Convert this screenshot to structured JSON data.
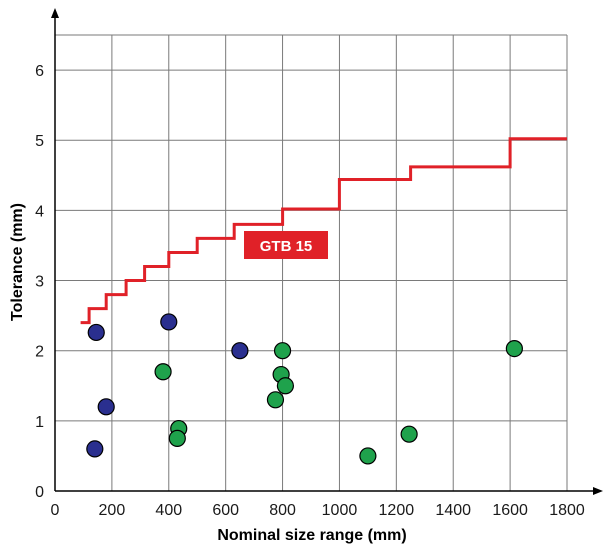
{
  "chart_data": {
    "type": "scatter",
    "xlabel": "Nominal size range (mm)",
    "ylabel": "Tolerance (mm)",
    "xlim": [
      0,
      1800
    ],
    "ylim": [
      0,
      6.5
    ],
    "x_ticks": [
      0,
      200,
      400,
      600,
      800,
      1000,
      1200,
      1400,
      1600,
      1800
    ],
    "y_ticks": [
      0,
      1,
      2,
      3,
      4,
      5,
      6
    ],
    "grid": true,
    "colors": {
      "line": "#e02128",
      "blue": "#2a2f8f",
      "green": "#1fa24c",
      "annotation_bg": "#e02128"
    },
    "step_line": {
      "label": "GTB 15",
      "points": [
        [
          90,
          2.4
        ],
        [
          120,
          2.4
        ],
        [
          120,
          2.6
        ],
        [
          180,
          2.6
        ],
        [
          180,
          2.8
        ],
        [
          250,
          2.8
        ],
        [
          250,
          3.0
        ],
        [
          315,
          3.0
        ],
        [
          315,
          3.2
        ],
        [
          400,
          3.2
        ],
        [
          400,
          3.4
        ],
        [
          500,
          3.4
        ],
        [
          500,
          3.6
        ],
        [
          630,
          3.6
        ],
        [
          630,
          3.8
        ],
        [
          800,
          3.8
        ],
        [
          800,
          4.02
        ],
        [
          1000,
          4.02
        ],
        [
          1000,
          4.44
        ],
        [
          1250,
          4.44
        ],
        [
          1250,
          4.62
        ],
        [
          1600,
          4.62
        ],
        [
          1600,
          5.02
        ],
        [
          1800,
          5.02
        ]
      ]
    },
    "series": [
      {
        "color": "blue",
        "points": [
          [
            145,
            2.26
          ],
          [
            400,
            2.41
          ],
          [
            650,
            2.0
          ],
          [
            180,
            1.2
          ],
          [
            140,
            0.6
          ]
        ]
      },
      {
        "color": "green",
        "points": [
          [
            800,
            2.0
          ],
          [
            380,
            1.7
          ],
          [
            795,
            1.66
          ],
          [
            810,
            1.5
          ],
          [
            775,
            1.3
          ],
          [
            435,
            0.89
          ],
          [
            430,
            0.75
          ],
          [
            1100,
            0.5
          ],
          [
            1245,
            0.81
          ],
          [
            1615,
            2.03
          ]
        ]
      }
    ]
  }
}
